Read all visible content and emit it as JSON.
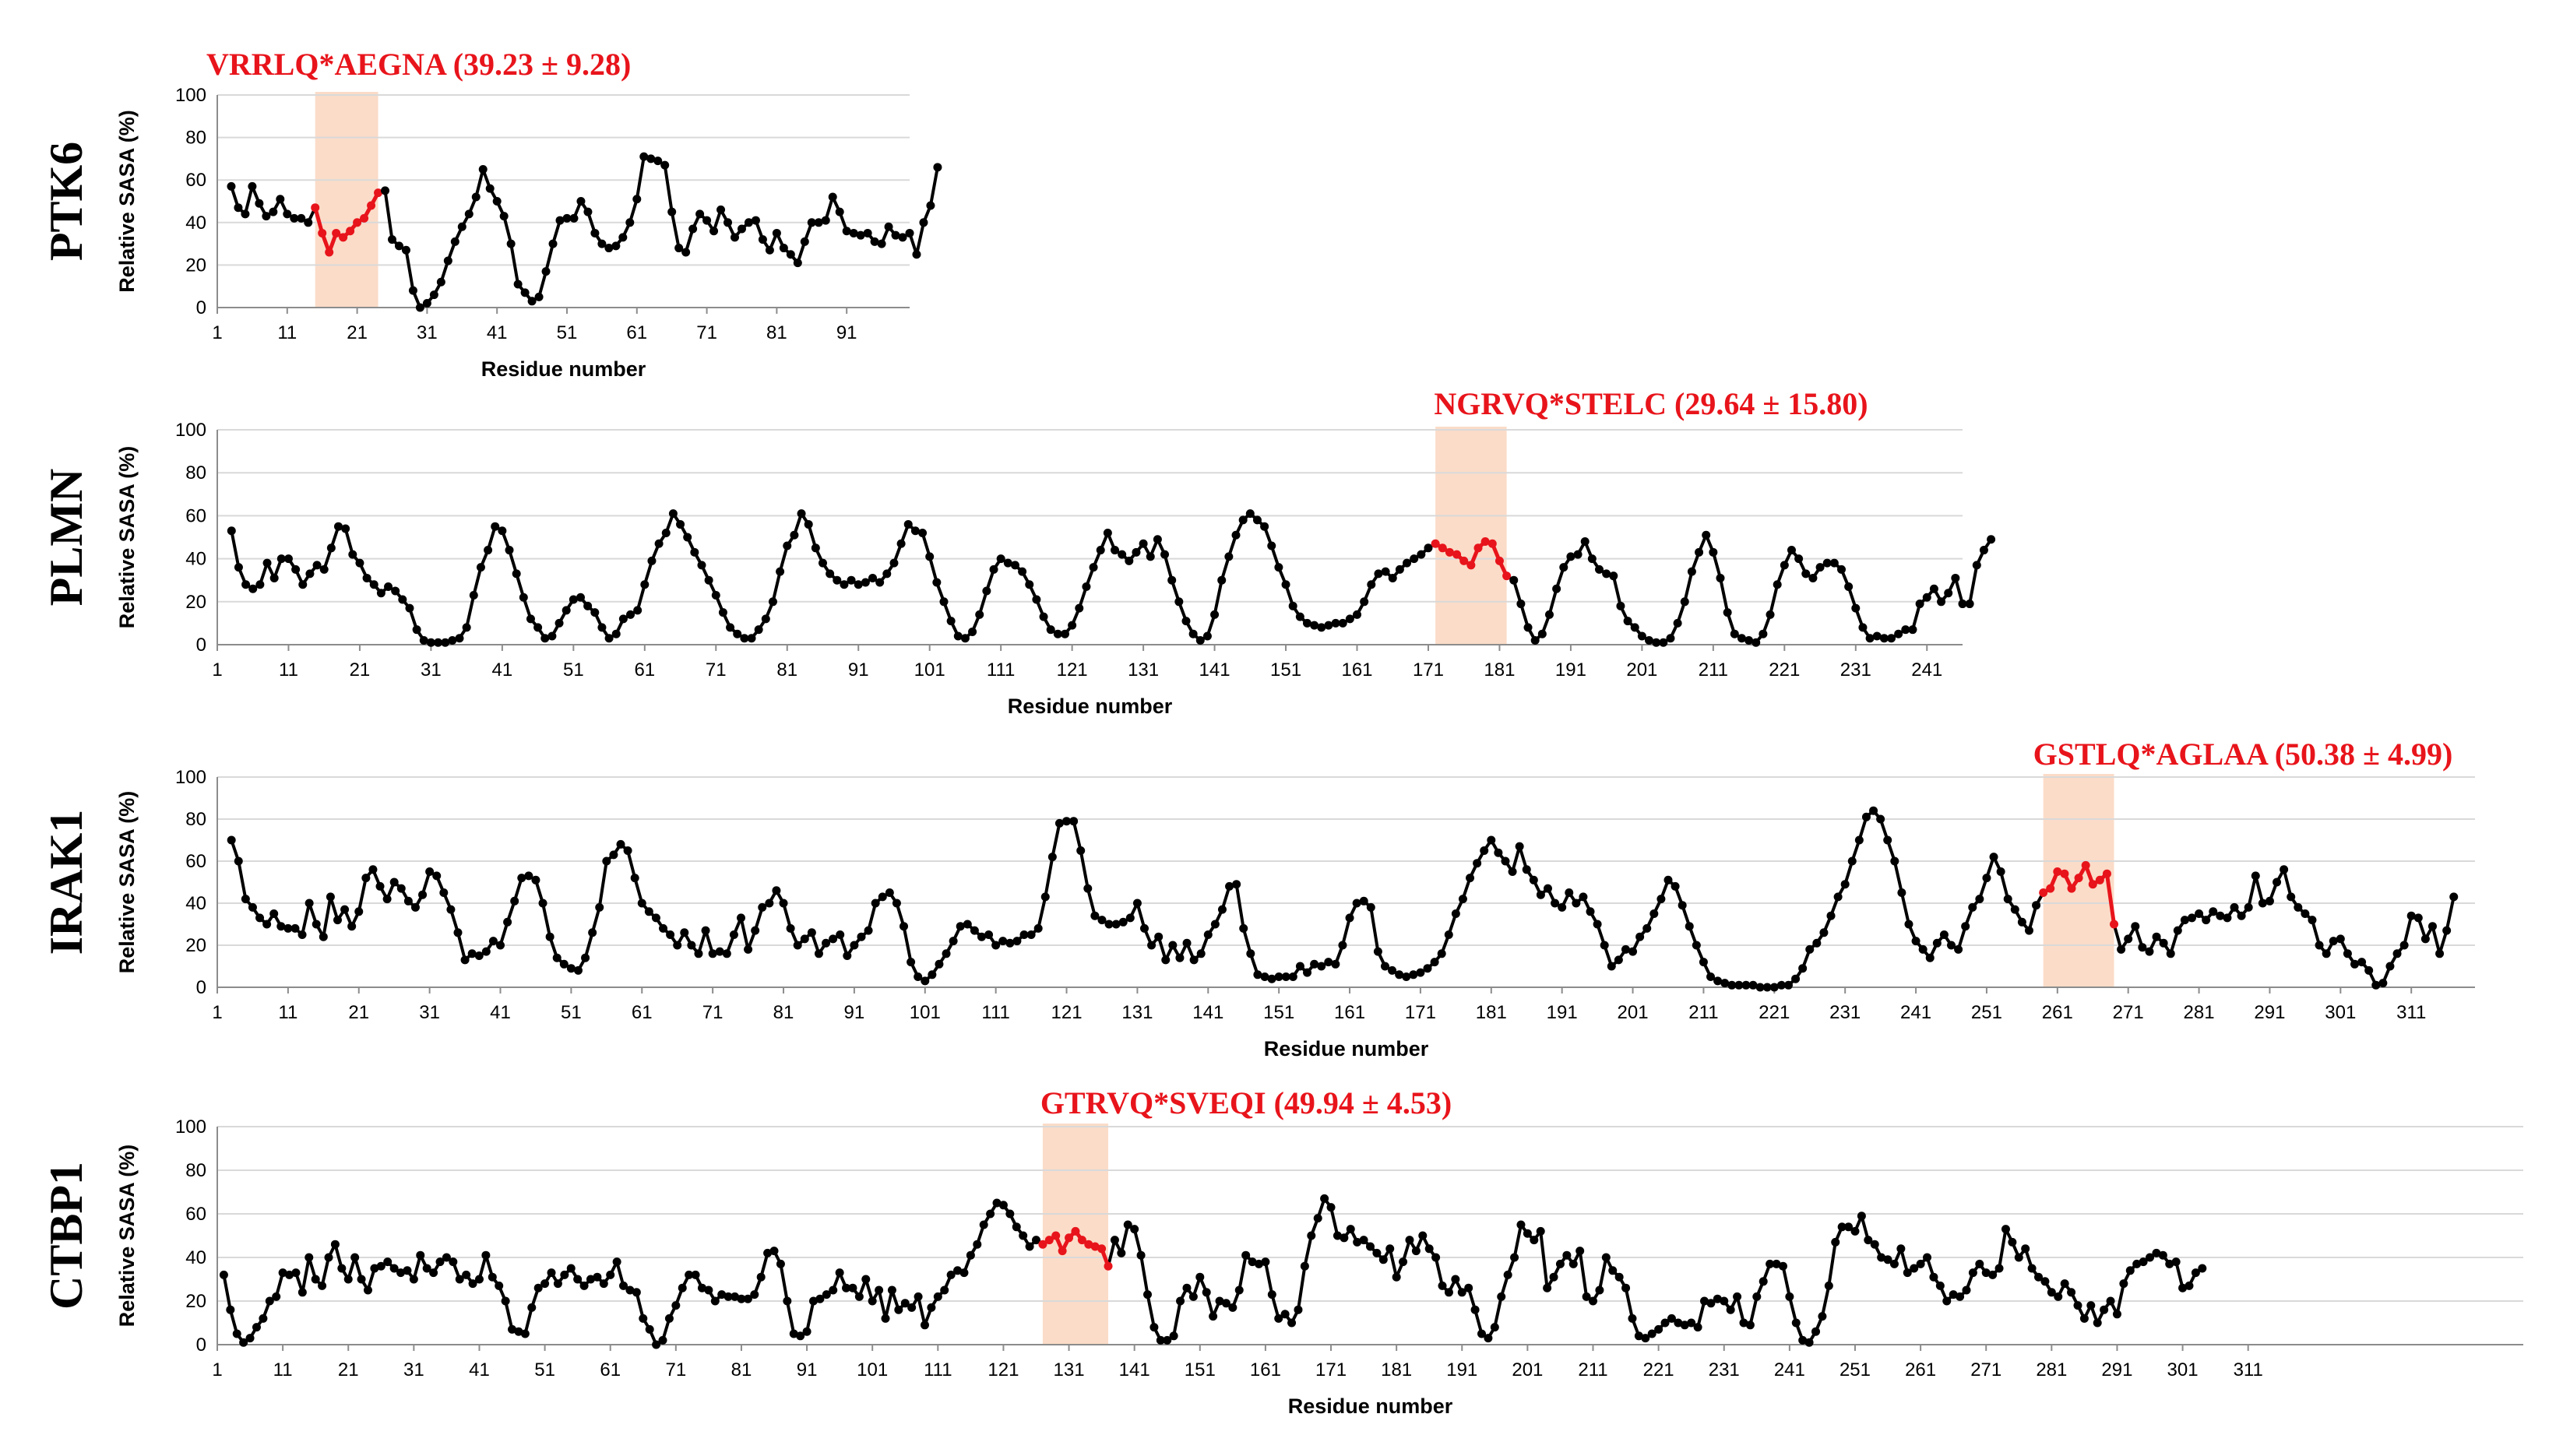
{
  "colors": {
    "highlight_line": "#e8141b",
    "highlight_band": "#fbdcc8",
    "line": "#000000",
    "grid": "#d9d9d9"
  },
  "chart_data": [
    {
      "type": "line",
      "protein": "PTK6",
      "highlight_label": "VRRLQ*AEGNA (39.23 ± 9.28)",
      "highlight_range": [
        15,
        24
      ],
      "xlabel": "Residue number",
      "ylabel": "Relative SASA (%)",
      "xlim": [
        1,
        100
      ],
      "ylim": [
        0,
        100
      ],
      "yticks": [
        "0",
        "20",
        "40",
        "60",
        "80",
        "100"
      ],
      "xticks": [
        "1",
        "11",
        "21",
        "31",
        "41",
        "51",
        "61",
        "71",
        "81",
        "91"
      ],
      "x_start": 3,
      "values": [
        57,
        47,
        44,
        57,
        49,
        43,
        45,
        51,
        44,
        42,
        42,
        40,
        47,
        35,
        26,
        35,
        33,
        36,
        40,
        42,
        48,
        54,
        55,
        32,
        29,
        27,
        8,
        0,
        2,
        6,
        12,
        22,
        31,
        38,
        44,
        52,
        65,
        56,
        50,
        43,
        30,
        11,
        7,
        3,
        5,
        17,
        30,
        41,
        42,
        42,
        50,
        45,
        35,
        30,
        28,
        29,
        33,
        40,
        51,
        71,
        70,
        69,
        67,
        45,
        28,
        26,
        37,
        44,
        41,
        36,
        46,
        40,
        33,
        37,
        40,
        41,
        32,
        27,
        35,
        28,
        25,
        21,
        31,
        40,
        40,
        41,
        52,
        45,
        36,
        35,
        34,
        35,
        31,
        30,
        38,
        34,
        33,
        35,
        25,
        40,
        48,
        66
      ]
    },
    {
      "type": "line",
      "protein": "PLMN",
      "highlight_label": "NGRVQ*STELC (29.64 ± 15.80)",
      "highlight_range": [
        172,
        182
      ],
      "xlabel": "Residue number",
      "ylabel": "Relative SASA (%)",
      "xlim": [
        1,
        246
      ],
      "ylim": [
        0,
        100
      ],
      "yticks": [
        "0",
        "20",
        "40",
        "60",
        "80",
        "100"
      ],
      "xticks": [
        "1",
        "11",
        "21",
        "31",
        "41",
        "51",
        "61",
        "71",
        "81",
        "91",
        "101",
        "111",
        "121",
        "131",
        "141",
        "151",
        "161",
        "171",
        "181",
        "191",
        "201",
        "211",
        "221",
        "231",
        "241"
      ],
      "x_start": 3,
      "values": [
        53,
        36,
        28,
        26,
        28,
        38,
        31,
        40,
        40,
        35,
        28,
        33,
        37,
        35,
        45,
        55,
        54,
        42,
        38,
        31,
        28,
        24,
        27,
        25,
        21,
        17,
        7,
        2,
        1,
        1,
        1,
        2,
        3,
        8,
        23,
        36,
        44,
        55,
        53,
        44,
        33,
        22,
        12,
        8,
        3,
        4,
        10,
        16,
        21,
        22,
        18,
        15,
        8,
        3,
        5,
        12,
        14,
        16,
        28,
        39,
        47,
        52,
        61,
        56,
        50,
        43,
        37,
        30,
        23,
        15,
        8,
        5,
        3,
        3,
        7,
        12,
        20,
        34,
        46,
        51,
        61,
        56,
        45,
        38,
        33,
        30,
        28,
        30,
        28,
        29,
        31,
        29,
        33,
        38,
        47,
        56,
        53,
        52,
        41,
        29,
        20,
        11,
        4,
        3,
        6,
        14,
        25,
        35,
        40,
        38,
        37,
        34,
        28,
        21,
        13,
        7,
        5,
        5,
        9,
        17,
        27,
        36,
        44,
        52,
        44,
        42,
        39,
        43,
        47,
        41,
        49,
        42,
        30,
        20,
        11,
        5,
        2,
        4,
        14,
        30,
        41,
        51,
        58,
        61,
        58,
        55,
        46,
        36,
        28,
        18,
        13,
        10,
        9,
        8,
        9,
        10,
        10,
        12,
        14,
        20,
        28,
        33,
        34,
        31,
        35,
        38,
        40,
        42,
        45,
        47,
        45,
        43,
        42,
        39,
        37,
        45,
        48,
        47,
        39,
        32,
        30,
        19,
        8,
        2,
        5,
        14,
        26,
        36,
        41,
        42,
        48,
        40,
        35,
        33,
        32,
        18,
        11,
        8,
        4,
        2,
        1,
        1,
        3,
        10,
        20,
        34,
        43,
        51,
        43,
        31,
        15,
        5,
        3,
        2,
        1,
        5,
        14,
        28,
        37,
        44,
        40,
        33,
        31,
        36,
        38,
        38,
        35,
        27,
        17,
        8,
        3,
        4,
        3,
        3,
        5,
        7,
        7,
        19,
        22,
        26,
        20,
        24,
        31,
        19,
        19,
        37,
        44,
        49
      ]
    },
    {
      "type": "line",
      "protein": "IRAK1",
      "highlight_label": "GSTLQ*AGLAA (50.38 ± 4.99)",
      "highlight_range": [
        259,
        269
      ],
      "xlabel": "Residue number",
      "ylabel": "Relative SASA (%)",
      "xlim": [
        1,
        320
      ],
      "ylim": [
        0,
        100
      ],
      "yticks": [
        "0",
        "20",
        "40",
        "60",
        "80",
        "100"
      ],
      "xticks": [
        "1",
        "11",
        "21",
        "31",
        "41",
        "51",
        "61",
        "71",
        "81",
        "91",
        "101",
        "111",
        "121",
        "131",
        "141",
        "151",
        "161",
        "171",
        "181",
        "191",
        "201",
        "211",
        "221",
        "231",
        "241",
        "251",
        "261",
        "271",
        "281",
        "291",
        "301",
        "311"
      ],
      "x_start": 3,
      "values": [
        70,
        60,
        42,
        38,
        33,
        30,
        35,
        29,
        28,
        28,
        25,
        40,
        30,
        24,
        43,
        32,
        37,
        29,
        36,
        52,
        56,
        48,
        42,
        50,
        47,
        41,
        38,
        44,
        55,
        53,
        45,
        37,
        26,
        13,
        16,
        15,
        17,
        22,
        20,
        31,
        41,
        52,
        53,
        51,
        40,
        24,
        14,
        11,
        9,
        8,
        14,
        26,
        38,
        60,
        63,
        68,
        65,
        52,
        40,
        36,
        33,
        28,
        25,
        20,
        26,
        20,
        16,
        27,
        16,
        17,
        16,
        25,
        33,
        18,
        27,
        38,
        40,
        46,
        40,
        28,
        20,
        23,
        26,
        16,
        21,
        23,
        25,
        15,
        20,
        24,
        27,
        40,
        43,
        45,
        40,
        29,
        12,
        5,
        3,
        6,
        11,
        16,
        22,
        29,
        30,
        27,
        24,
        25,
        20,
        22,
        21,
        22,
        25,
        25,
        28,
        43,
        62,
        78,
        79,
        79,
        65,
        47,
        34,
        32,
        30,
        30,
        31,
        33,
        40,
        28,
        20,
        24,
        13,
        20,
        14,
        21,
        13,
        16,
        25,
        30,
        37,
        48,
        49,
        28,
        16,
        6,
        5,
        4,
        5,
        5,
        5,
        10,
        7,
        11,
        10,
        12,
        11,
        20,
        33,
        40,
        41,
        38,
        17,
        10,
        8,
        6,
        5,
        6,
        7,
        9,
        12,
        16,
        25,
        35,
        42,
        52,
        59,
        65,
        70,
        64,
        60,
        55,
        67,
        56,
        51,
        44,
        47,
        40,
        38,
        45,
        40,
        43,
        36,
        30,
        20,
        10,
        13,
        18,
        17,
        24,
        28,
        35,
        42,
        51,
        48,
        39,
        29,
        20,
        12,
        5,
        3,
        2,
        1,
        1,
        1,
        1,
        0,
        0,
        0,
        1,
        1,
        4,
        9,
        18,
        21,
        26,
        34,
        43,
        49,
        60,
        70,
        81,
        84,
        80,
        70,
        60,
        45,
        30,
        22,
        18,
        14,
        21,
        25,
        20,
        18,
        29,
        38,
        42,
        52,
        62,
        55,
        42,
        37,
        31,
        27,
        39,
        45,
        47,
        55,
        54,
        47,
        52,
        58,
        49,
        51,
        54,
        30,
        18,
        23,
        29,
        19,
        17,
        24,
        21,
        16,
        27,
        32,
        33,
        35,
        32,
        36,
        34,
        33,
        38,
        34,
        38,
        53,
        40,
        41,
        50,
        56,
        43,
        38,
        35,
        32,
        20,
        16,
        22,
        23,
        16,
        11,
        12,
        8,
        1,
        2,
        10,
        16,
        20,
        34,
        33,
        23,
        29,
        16,
        27,
        43
      ]
    },
    {
      "type": "line",
      "protein": "CTBP1",
      "highlight_label": "GTRVQ*SVEQI (49.94 ± 4.53)",
      "highlight_range": [
        127,
        137
      ],
      "xlabel": "Residue number",
      "ylabel": "Relative SASA (%)",
      "xlim": [
        1,
        353
      ],
      "ylim": [
        0,
        100
      ],
      "yticks": [
        "0",
        "20",
        "40",
        "60",
        "80",
        "100"
      ],
      "xticks": [
        "1",
        "11",
        "21",
        "31",
        "41",
        "51",
        "61",
        "71",
        "81",
        "91",
        "101",
        "111",
        "121",
        "131",
        "141",
        "151",
        "161",
        "171",
        "181",
        "191",
        "201",
        "211",
        "221",
        "231",
        "241",
        "251",
        "261",
        "271",
        "281",
        "291",
        "301",
        "311"
      ],
      "x_start": 2,
      "values": [
        32,
        16,
        5,
        1,
        3,
        8,
        12,
        20,
        22,
        33,
        32,
        33,
        24,
        40,
        30,
        27,
        40,
        46,
        35,
        30,
        40,
        30,
        25,
        35,
        36,
        38,
        35,
        33,
        34,
        30,
        41,
        35,
        33,
        38,
        40,
        38,
        30,
        32,
        28,
        30,
        41,
        31,
        27,
        20,
        7,
        6,
        5,
        17,
        26,
        28,
        33,
        28,
        32,
        35,
        30,
        27,
        30,
        31,
        28,
        32,
        38,
        27,
        25,
        24,
        12,
        7,
        0,
        2,
        12,
        18,
        26,
        32,
        32,
        26,
        25,
        20,
        23,
        22,
        22,
        21,
        21,
        23,
        31,
        42,
        43,
        37,
        20,
        5,
        4,
        6,
        20,
        21,
        23,
        25,
        33,
        26,
        26,
        22,
        30,
        20,
        25,
        12,
        25,
        16,
        19,
        17,
        22,
        9,
        17,
        22,
        25,
        32,
        34,
        33,
        41,
        46,
        55,
        60,
        65,
        64,
        60,
        54,
        50,
        45,
        48,
        46,
        48,
        50,
        43,
        49,
        52,
        48,
        46,
        45,
        44,
        36,
        48,
        42,
        55,
        53,
        41,
        23,
        8,
        2,
        2,
        4,
        20,
        26,
        22,
        31,
        24,
        13,
        20,
        19,
        17,
        25,
        41,
        38,
        37,
        38,
        23,
        12,
        14,
        10,
        16,
        36,
        50,
        58,
        67,
        63,
        50,
        49,
        53,
        47,
        48,
        45,
        42,
        39,
        44,
        31,
        38,
        48,
        43,
        50,
        44,
        40,
        27,
        24,
        30,
        24,
        26,
        16,
        5,
        3,
        8,
        22,
        32,
        40,
        55,
        51,
        48,
        52,
        26,
        31,
        37,
        41,
        37,
        43,
        22,
        20,
        25,
        40,
        34,
        31,
        26,
        12,
        4,
        3,
        5,
        7,
        10,
        12,
        10,
        9,
        10,
        8,
        20,
        19,
        21,
        20,
        16,
        22,
        10,
        9,
        22,
        29,
        37,
        37,
        36,
        22,
        10,
        2,
        1,
        6,
        13,
        27,
        47,
        54,
        54,
        52,
        59,
        48,
        46,
        40,
        39,
        37,
        44,
        33,
        35,
        37,
        40,
        31,
        27,
        20,
        23,
        22,
        25,
        33,
        37,
        33,
        32,
        35,
        53,
        47,
        40,
        44,
        35,
        31,
        29,
        24,
        22,
        28,
        24,
        18,
        12,
        18,
        10,
        16,
        20,
        14,
        28,
        34,
        37,
        38,
        40,
        42,
        41,
        37,
        38,
        26,
        27,
        33,
        35
      ]
    }
  ]
}
